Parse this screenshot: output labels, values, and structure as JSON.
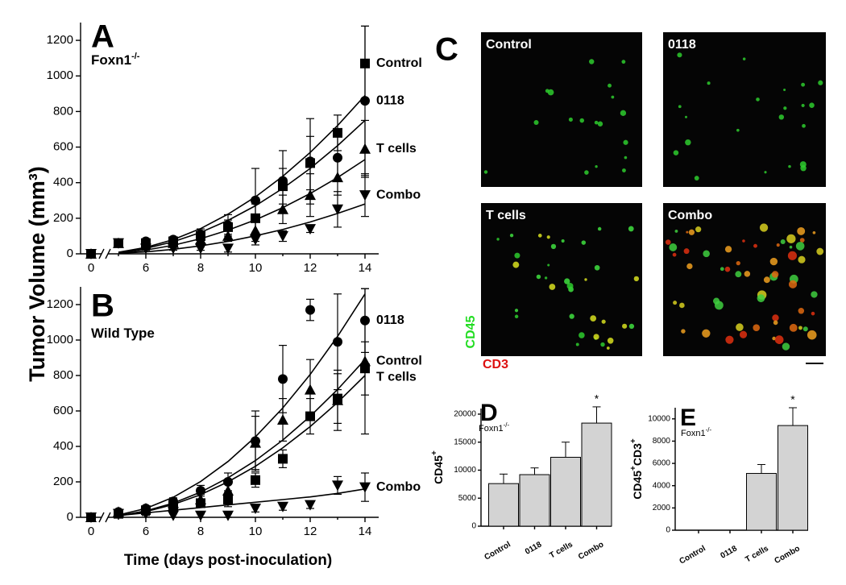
{
  "figure": {
    "y_label": "Tumor Volume (mm³)",
    "x_label": "Time (days post-inoculation)"
  },
  "chart_data": [
    {
      "type": "line",
      "panel": "A",
      "subtitle": "Foxn1",
      "subtitle_sup": "-/-",
      "categories": [
        "0",
        null,
        "6",
        null,
        "8",
        null,
        "10",
        null,
        "12",
        null,
        "14"
      ],
      "axis_break": true,
      "ylim": [
        0,
        1300
      ],
      "yticks": [
        0,
        200,
        400,
        600,
        800,
        1000,
        1200
      ],
      "series": [
        {
          "name": "Control",
          "marker": "square",
          "color": "#000000",
          "values": [
            0,
            60,
            60,
            70,
            100,
            150,
            200,
            380,
            510,
            680,
            1070
          ],
          "errors": [
            0,
            10,
            10,
            15,
            20,
            40,
            80,
            100,
            150,
            100,
            210
          ],
          "fit_values": [
            null,
            9,
            36,
            80,
            142,
            223,
            320,
            436,
            570,
            721,
            890
          ]
        },
        {
          "name": "0118",
          "marker": "circle",
          "color": "#000000",
          "values": [
            0,
            60,
            70,
            80,
            110,
            160,
            300,
            410,
            520,
            540,
            860
          ],
          "errors": [
            0,
            10,
            10,
            15,
            30,
            60,
            180,
            170,
            240,
            120,
            420
          ],
          "fit_values": [
            null,
            8,
            30,
            68,
            120,
            188,
            270,
            368,
            480,
            608,
            750
          ]
        },
        {
          "name": "T cells",
          "marker": "triangle-up",
          "color": "#000000",
          "values": [
            0,
            60,
            50,
            60,
            80,
            100,
            130,
            250,
            330,
            430,
            590
          ],
          "errors": [
            0,
            10,
            10,
            10,
            20,
            30,
            60,
            80,
            120,
            100,
            160
          ],
          "fit_values": [
            null,
            5,
            21,
            48,
            85,
            133,
            191,
            260,
            339,
            429,
            530
          ]
        },
        {
          "name": "Combo",
          "marker": "triangle-down",
          "color": "#000000",
          "values": [
            0,
            60,
            30,
            30,
            30,
            30,
            80,
            100,
            140,
            250,
            330
          ],
          "errors": [
            0,
            10,
            10,
            10,
            10,
            20,
            30,
            30,
            20,
            100,
            120
          ],
          "fit_values": [
            null,
            3,
            11,
            25,
            45,
            70,
            101,
            137,
            179,
            227,
            280
          ]
        }
      ]
    },
    {
      "type": "line",
      "panel": "B",
      "subtitle": "Wild Type",
      "categories": [
        "0",
        null,
        "6",
        null,
        "8",
        null,
        "10",
        null,
        "12",
        null,
        "14"
      ],
      "axis_break": true,
      "ylim": [
        0,
        1300
      ],
      "yticks": [
        0,
        200,
        400,
        600,
        800,
        1000,
        1200
      ],
      "series": [
        {
          "name": "0118",
          "marker": "circle",
          "color": "#000000",
          "values": [
            0,
            30,
            50,
            90,
            150,
            200,
            430,
            780,
            1170,
            990,
            1110
          ],
          "errors": [
            0,
            10,
            10,
            20,
            30,
            50,
            170,
            190,
            60,
            270,
            180
          ],
          "fit_values": [
            null,
            13,
            50,
            113,
            202,
            315,
            454,
            617,
            806,
            1021,
            1260
          ]
        },
        {
          "name": "Control",
          "marker": "triangle-up",
          "color": "#000000",
          "values": [
            0,
            30,
            50,
            80,
            100,
            150,
            420,
            550,
            720,
            660,
            880
          ],
          "errors": [
            0,
            10,
            10,
            20,
            30,
            60,
            150,
            120,
            170,
            170,
            410
          ],
          "fit_values": [
            null,
            9,
            36,
            80,
            142,
            223,
            320,
            436,
            570,
            721,
            890
          ]
        },
        {
          "name": "T cells",
          "marker": "square",
          "color": "#000000",
          "values": [
            0,
            20,
            40,
            60,
            80,
            100,
            210,
            330,
            570,
            670,
            840
          ],
          "errors": [
            0,
            10,
            10,
            20,
            20,
            40,
            40,
            50,
            100,
            140,
            150
          ],
          "fit_values": [
            null,
            8,
            32,
            72,
            128,
            200,
            288,
            392,
            512,
            648,
            800
          ]
        },
        {
          "name": "Combo",
          "marker": "triangle-down",
          "color": "#000000",
          "values": [
            0,
            20,
            20,
            10,
            10,
            10,
            50,
            60,
            70,
            180,
            170
          ],
          "errors": [
            0,
            10,
            10,
            10,
            10,
            10,
            20,
            20,
            20,
            50,
            80
          ],
          "fit_values": [
            null,
            10,
            25,
            40,
            55,
            70,
            85,
            100,
            115,
            135,
            160
          ]
        }
      ]
    },
    {
      "type": "bar",
      "panel": "D",
      "subtitle": "Foxn1",
      "subtitle_sup": "-/-",
      "y_label_parts": [
        "CD45",
        "+"
      ],
      "categories": [
        "Control",
        "0118",
        "T cells",
        "Combo"
      ],
      "values": [
        7600,
        9200,
        12300,
        18400
      ],
      "errors": [
        1700,
        1200,
        2700,
        2900
      ],
      "annotations": [
        null,
        null,
        null,
        "*"
      ],
      "color": "#d3d3d3",
      "ylim": [
        0,
        21000
      ],
      "yticks": [
        0,
        5000,
        10000,
        15000,
        20000
      ]
    },
    {
      "type": "bar",
      "panel": "E",
      "subtitle": "Foxn1",
      "subtitle_sup": "-/-",
      "y_label_parts": [
        "CD45",
        "+",
        "CD3",
        "+"
      ],
      "categories": [
        "Control",
        "0118",
        "T cells",
        "Combo"
      ],
      "values": [
        null,
        null,
        5100,
        9400
      ],
      "errors": [
        null,
        null,
        800,
        1600
      ],
      "annotations": [
        null,
        null,
        null,
        "*"
      ],
      "color": "#d3d3d3",
      "ylim": [
        0,
        11000
      ],
      "yticks": [
        0,
        2000,
        4000,
        6000,
        8000,
        10000
      ]
    }
  ],
  "panel_c": {
    "letter": "C",
    "images": [
      "Control",
      "0118",
      "T cells",
      "Combo"
    ],
    "stain_labels": [
      "CD45",
      "CD3"
    ]
  }
}
